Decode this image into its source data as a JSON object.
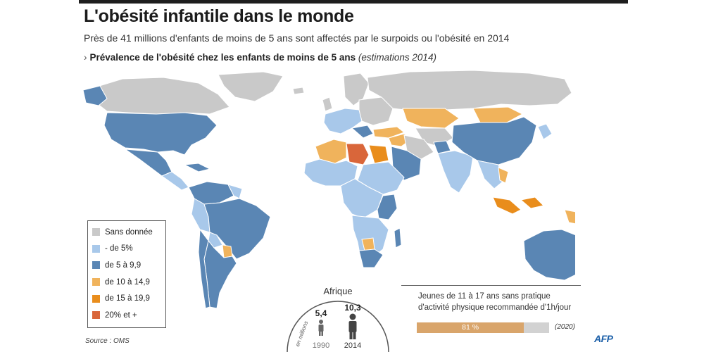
{
  "title": "L'obésité infantile dans le monde",
  "subtitle": "Près de 41 millions d'enfants de moins de 5 ans sont affectés par le surpoids ou l'obésité en 2014",
  "section": {
    "arrow": "›",
    "label": "Prévalence de l'obésité chez les enfants de moins de 5 ans",
    "note": "(estimations 2014)"
  },
  "legend": [
    {
      "label": "Sans donnée",
      "color": "#c9c9c9"
    },
    {
      "label": "- de 5%",
      "color": "#a8c8ea"
    },
    {
      "label": "de 5 à 9,9",
      "color": "#5a86b4"
    },
    {
      "label": "de 10 à 14,9",
      "color": "#f0b35c"
    },
    {
      "label": "de 15 à 19,9",
      "color": "#e98d1c"
    },
    {
      "label": "20% et +",
      "color": "#d9663a"
    }
  ],
  "africa_inset": {
    "title": "Afrique",
    "unit": "en millions",
    "values": [
      {
        "year": "1990",
        "value": "5,4"
      },
      {
        "year": "2014",
        "value": "10,3"
      }
    ]
  },
  "activity_panel": {
    "title": "Jeunes de 11 à 17 ans sans pratique d'activité physique recommandée d'1h/jour",
    "value": 81,
    "value_label": "81 %",
    "year": "(2020)"
  },
  "source": "Source : OMS",
  "logo": "AFP"
}
